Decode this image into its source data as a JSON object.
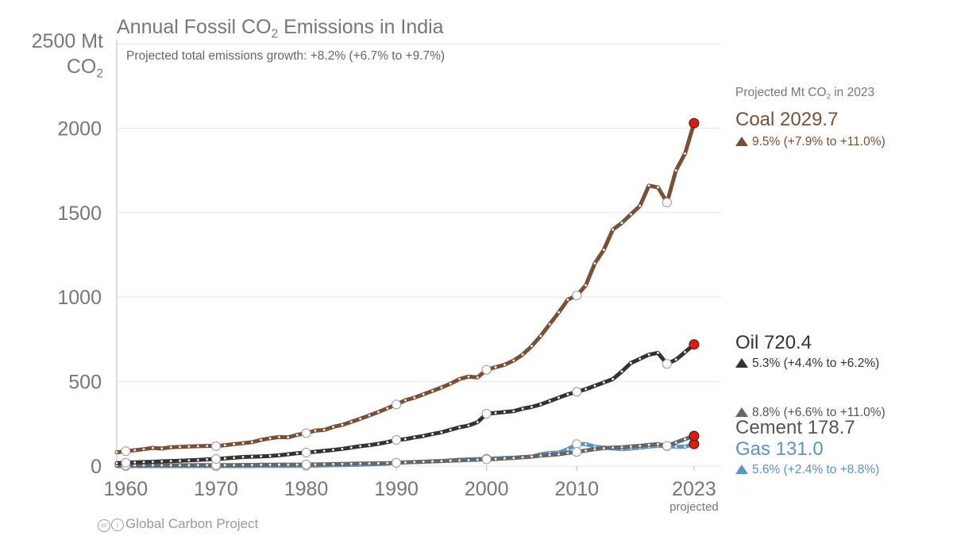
{
  "chart_data": {
    "type": "line",
    "title_prefix": "Annual Fossil CO",
    "title_sub": "2",
    "title_suffix": " Emissions in India",
    "subtitle": "Projected total emissions growth: +8.2% (+6.7% to +9.7%)",
    "y_unit_line1": "2500 Mt",
    "y_unit_line2_prefix": "CO",
    "y_unit_line2_sub": "2",
    "yticks": [
      0,
      500,
      1000,
      1500,
      "2000"
    ],
    "ylim": [
      0,
      2500
    ],
    "xlim": [
      1959,
      2026
    ],
    "xticks": [
      1960,
      1970,
      1980,
      1990,
      2000,
      2010,
      2023
    ],
    "x_projected_label": "projected",
    "projected_header_prefix": "Projected Mt CO",
    "projected_header_sub": "2",
    "projected_header_suffix": " in 2023",
    "series": [
      {
        "key": "coal",
        "name": "Coal",
        "color": "#7b4f36",
        "label": "Coal 2029.7",
        "projected_value": 2029.7,
        "change": "9.5% (+7.9% to +11.0%)",
        "years": [
          1959,
          1960,
          1961,
          1962,
          1963,
          1964,
          1965,
          1966,
          1967,
          1968,
          1969,
          1970,
          1971,
          1972,
          1973,
          1974,
          1975,
          1976,
          1977,
          1978,
          1979,
          1980,
          1981,
          1982,
          1983,
          1984,
          1985,
          1986,
          1987,
          1988,
          1989,
          1990,
          1991,
          1992,
          1993,
          1994,
          1995,
          1996,
          1997,
          1998,
          1999,
          2000,
          2001,
          2002,
          2003,
          2004,
          2005,
          2006,
          2007,
          2008,
          2009,
          2010,
          2011,
          2012,
          2013,
          2014,
          2015,
          2016,
          2017,
          2018,
          2019,
          2020,
          2021,
          2022,
          2023
        ],
        "values": [
          82,
          88,
          94,
          100,
          108,
          104,
          112,
          114,
          116,
          118,
          120,
          118,
          124,
          130,
          136,
          142,
          155,
          165,
          172,
          170,
          185,
          195,
          210,
          214,
          232,
          244,
          262,
          280,
          300,
          320,
          342,
          365,
          390,
          405,
          425,
          445,
          465,
          488,
          515,
          530,
          525,
          570,
          585,
          600,
          625,
          660,
          710,
          770,
          840,
          910,
          985,
          1010,
          1070,
          1200,
          1280,
          1400,
          1440,
          1490,
          1540,
          1660,
          1650,
          1560,
          1750,
          1850,
          2029.7
        ]
      },
      {
        "key": "oil",
        "name": "Oil",
        "color": "#333333",
        "label": "Oil 720.4",
        "projected_value": 720.4,
        "change": "5.3% (+4.4% to +6.2%)",
        "years": [
          1959,
          1960,
          1961,
          1962,
          1963,
          1964,
          1965,
          1966,
          1967,
          1968,
          1969,
          1970,
          1971,
          1972,
          1973,
          1974,
          1975,
          1976,
          1977,
          1978,
          1979,
          1980,
          1981,
          1982,
          1983,
          1984,
          1985,
          1986,
          1987,
          1988,
          1989,
          1990,
          1991,
          1992,
          1993,
          1994,
          1995,
          1996,
          1997,
          1998,
          1999,
          2000,
          2001,
          2002,
          2003,
          2004,
          2005,
          2006,
          2007,
          2008,
          2009,
          2010,
          2011,
          2012,
          2013,
          2014,
          2015,
          2016,
          2017,
          2018,
          2019,
          2020,
          2021,
          2022,
          2023
        ],
        "values": [
          18,
          20,
          22,
          24,
          26,
          28,
          30,
          32,
          34,
          36,
          40,
          42,
          46,
          50,
          54,
          56,
          58,
          60,
          64,
          70,
          76,
          80,
          85,
          90,
          96,
          102,
          110,
          118,
          124,
          132,
          142,
          155,
          160,
          170,
          178,
          190,
          200,
          215,
          230,
          240,
          260,
          310,
          315,
          320,
          325,
          340,
          350,
          365,
          385,
          405,
          425,
          440,
          455,
          475,
          495,
          515,
          560,
          610,
          635,
          660,
          670,
          605,
          630,
          675,
          720.4
        ]
      },
      {
        "key": "cement",
        "name": "Cement",
        "color": "#666666",
        "label": "Cement 178.7",
        "projected_value": 178.7,
        "change": "8.8% (+6.6% to +11.0%)",
        "years": [
          1959,
          1960,
          1961,
          1962,
          1963,
          1964,
          1965,
          1966,
          1967,
          1968,
          1969,
          1970,
          1971,
          1972,
          1973,
          1974,
          1975,
          1976,
          1977,
          1978,
          1979,
          1980,
          1981,
          1982,
          1983,
          1984,
          1985,
          1986,
          1987,
          1988,
          1989,
          1990,
          1991,
          1992,
          1993,
          1994,
          1995,
          1996,
          1997,
          1998,
          1999,
          2000,
          2001,
          2002,
          2003,
          2004,
          2005,
          2006,
          2007,
          2008,
          2009,
          2010,
          2011,
          2012,
          2013,
          2014,
          2015,
          2016,
          2017,
          2018,
          2019,
          2020,
          2021,
          2022,
          2023
        ],
        "values": [
          4,
          4,
          4,
          4,
          5,
          5,
          5,
          5,
          5,
          6,
          6,
          6,
          6,
          6,
          7,
          7,
          8,
          8,
          9,
          9,
          9,
          10,
          10,
          11,
          12,
          13,
          14,
          15,
          16,
          17,
          18,
          20,
          22,
          24,
          26,
          28,
          30,
          32,
          34,
          36,
          38,
          40,
          42,
          46,
          48,
          52,
          56,
          62,
          66,
          70,
          78,
          84,
          92,
          100,
          106,
          110,
          112,
          116,
          120,
          126,
          130,
          120,
          140,
          160,
          178.7
        ]
      },
      {
        "key": "gas",
        "name": "Gas",
        "color": "#5a93c6",
        "label": "Gas 131.0",
        "projected_value": 131.0,
        "change": "5.6% (+2.4% to +8.8%)",
        "years": [
          1959,
          1960,
          1961,
          1962,
          1963,
          1964,
          1965,
          1966,
          1967,
          1968,
          1969,
          1970,
          1971,
          1972,
          1973,
          1974,
          1975,
          1976,
          1977,
          1978,
          1979,
          1980,
          1981,
          1982,
          1983,
          1984,
          1985,
          1986,
          1987,
          1988,
          1989,
          1990,
          1991,
          1992,
          1993,
          1994,
          1995,
          1996,
          1997,
          1998,
          1999,
          2000,
          2001,
          2002,
          2003,
          2004,
          2005,
          2006,
          2007,
          2008,
          2009,
          2010,
          2011,
          2012,
          2013,
          2014,
          2015,
          2016,
          2017,
          2018,
          2019,
          2020,
          2021,
          2022,
          2023
        ],
        "values": [
          0,
          0,
          0,
          0,
          0,
          0,
          0,
          0,
          0,
          0,
          0,
          0,
          0,
          0,
          0,
          0,
          1,
          1,
          1,
          1,
          2,
          2,
          3,
          4,
          5,
          6,
          7,
          8,
          10,
          12,
          14,
          20,
          22,
          24,
          26,
          28,
          30,
          34,
          38,
          40,
          42,
          44,
          46,
          48,
          50,
          54,
          56,
          70,
          78,
          80,
          100,
          130,
          130,
          115,
          110,
          105,
          100,
          105,
          110,
          115,
          120,
          118,
          115,
          115,
          131.0
        ]
      }
    ],
    "circle_years": [
      1960,
      1970,
      1980,
      1990,
      2000,
      2010,
      2020
    ],
    "projected_year": 2023
  },
  "footer": "Global Carbon Project",
  "footer_icons": {
    "cc": "cc",
    "by": "i"
  }
}
